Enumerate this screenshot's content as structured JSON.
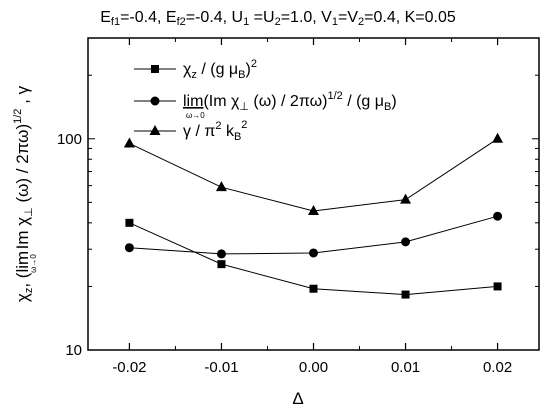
{
  "chart_data": {
    "type": "line",
    "title": "E_f1=-0.4, E_f2=-0.4, U_1=U_2=1.0, V_1=V_2=0.4, K=0.05",
    "title_parts": {
      "e": "E",
      "sub1": "f1",
      "seg1": "=-0.4, E",
      "sub2": "f2",
      "seg2": "=-0.4, U",
      "sub3": "1",
      "seg3": " =U",
      "sub4": "2",
      "seg4": "=1.0, V",
      "sub5": "1",
      "seg5": "=V",
      "sub6": "2",
      "seg6": "=0.4, K=0.05"
    },
    "xlabel": "Δ",
    "ylabel": "χz, (lim Im χ⊥(ω) / 2πω)^1/2, γ",
    "ylabel_parts": {
      "chi": "χ",
      "z": "z",
      "comma1": ",  (",
      "lim": "lim",
      "limsub": "ω→0",
      "im": " Im χ",
      "perp": "⊥",
      "rest": " (ω) / 2πω)",
      "exp": "1/2",
      "gamma": " ,  γ"
    },
    "x": [
      -0.02,
      -0.01,
      0.0,
      0.01,
      0.02
    ],
    "xtick_labels": [
      "-0.02",
      "-0.01",
      "0.00",
      "0.01",
      "0.02"
    ],
    "xlim": [
      -0.0245,
      0.0245
    ],
    "ylim": [
      10,
      300
    ],
    "yscale": "log",
    "yticks": [
      10,
      100
    ],
    "ytick_labels": [
      "10",
      "100"
    ],
    "grid": false,
    "legend_position": "top-center",
    "legend_text": [
      {
        "chi": "χ",
        "z": "z",
        "rest": " / (g μ",
        "b": "B",
        "close": ")",
        "sup": "2"
      },
      {
        "lim": "lim",
        "limsub": "ω→0",
        "im": "(Im χ",
        "perp": "⊥",
        "rest": " (ω) / 2πω)",
        "sup": "1/2",
        "tail": " / (g μ",
        "b": "B",
        "close": ")"
      },
      {
        "g": "γ /  π",
        "sup": "2",
        "k": " k",
        "b": "B",
        "sup2": "2"
      }
    ],
    "series": [
      {
        "marker": "square",
        "values": [
          40,
          25.5,
          19.5,
          18.3,
          20
        ]
      },
      {
        "marker": "circle",
        "values": [
          30.5,
          28.5,
          28.8,
          32.5,
          43
        ]
      },
      {
        "marker": "triangle",
        "values": [
          95,
          59,
          45.5,
          51.5,
          100
        ]
      }
    ],
    "colors": {
      "line": "#000000",
      "background": "#ffffff"
    }
  }
}
